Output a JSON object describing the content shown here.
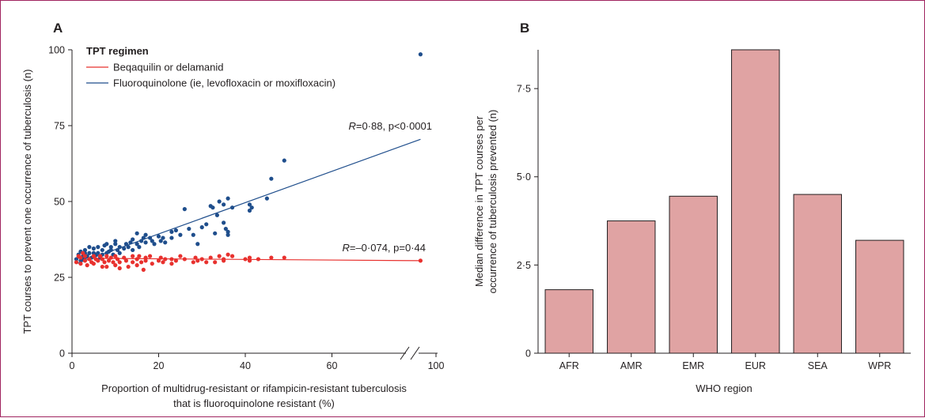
{
  "chart_data": [
    {
      "panel": "A",
      "type": "scatter",
      "xlabel_lines": [
        "Proportion of multidrug-resistant or rifampicin-resistant tuberculosis",
        "that is fluoroquinolone resistant (%)"
      ],
      "ylabel": "TPT courses to prevent one occurrence of tuberculosis (n)",
      "xlim": [
        0,
        100
      ],
      "ylim": [
        0,
        100
      ],
      "x_axis_break": true,
      "x_ticks": [
        "0",
        "20",
        "40",
        "60",
        "100"
      ],
      "y_ticks": [
        "0",
        "25",
        "50",
        "75",
        "100"
      ],
      "legend": {
        "title": "TPT regimen",
        "placement": "top-left",
        "entries": [
          {
            "label": "Beqaquilin or delamanid",
            "color": "#e8312e"
          },
          {
            "label": "Fluoroquinolone (ie, levofloxacin or moxifloxacin)",
            "color": "#1f4e8c"
          }
        ]
      },
      "annotations": [
        {
          "prefix": "R",
          "text": "=0·88, p<0·0001"
        },
        {
          "prefix": "R",
          "text": "=–0·074, p=0·44"
        }
      ],
      "series": [
        {
          "name": "Fluoroquinolone (ie, levofloxacin or moxifloxacin)",
          "color": "#1f4e8c",
          "fit": [
            [
              1,
              29.5
            ],
            [
              89,
              70.5
            ]
          ],
          "points": [
            [
              1,
              31
            ],
            [
              1.5,
              32.5
            ],
            [
              2,
              30.5
            ],
            [
              2,
              33.5
            ],
            [
              2.5,
              32
            ],
            [
              2.5,
              31
            ],
            [
              3,
              33
            ],
            [
              3,
              31.5
            ],
            [
              3,
              34
            ],
            [
              3.5,
              32
            ],
            [
              4,
              33
            ],
            [
              4,
              35
            ],
            [
              4.5,
              31.5
            ],
            [
              5,
              33
            ],
            [
              5,
              34.5
            ],
            [
              5.5,
              32.5
            ],
            [
              6,
              33
            ],
            [
              6,
              35
            ],
            [
              6.5,
              31.5
            ],
            [
              7,
              34
            ],
            [
              7,
              32.5
            ],
            [
              7.5,
              35.5
            ],
            [
              8,
              33
            ],
            [
              8,
              36
            ],
            [
              8.5,
              33.5
            ],
            [
              9,
              35
            ],
            [
              9,
              34
            ],
            [
              9.5,
              32.5
            ],
            [
              10,
              36
            ],
            [
              10,
              37
            ],
            [
              10.5,
              34
            ],
            [
              11,
              35
            ],
            [
              11,
              33
            ],
            [
              12,
              34.5
            ],
            [
              12.5,
              36
            ],
            [
              13,
              35
            ],
            [
              13.5,
              36.5
            ],
            [
              14,
              37.5
            ],
            [
              14,
              34
            ],
            [
              15,
              36
            ],
            [
              15,
              39.5
            ],
            [
              15.5,
              35
            ],
            [
              16,
              37
            ],
            [
              16.5,
              38
            ],
            [
              17,
              36.5
            ],
            [
              17,
              39
            ],
            [
              18,
              38
            ],
            [
              18.5,
              37
            ],
            [
              19,
              36
            ],
            [
              20,
              38.5
            ],
            [
              20.5,
              37
            ],
            [
              21,
              38
            ],
            [
              21.5,
              36.5
            ],
            [
              23,
              38
            ],
            [
              23,
              40
            ],
            [
              24,
              40.5
            ],
            [
              25,
              39
            ],
            [
              26,
              47.5
            ],
            [
              27,
              41
            ],
            [
              28,
              39
            ],
            [
              29,
              36
            ],
            [
              30,
              41.5
            ],
            [
              31,
              42.5
            ],
            [
              32,
              48.5
            ],
            [
              32.5,
              48
            ],
            [
              33,
              39.5
            ],
            [
              33.5,
              45.5
            ],
            [
              34,
              50
            ],
            [
              35,
              49
            ],
            [
              35,
              43
            ],
            [
              35.5,
              41
            ],
            [
              36,
              40
            ],
            [
              36,
              39
            ],
            [
              36,
              51
            ],
            [
              37,
              48
            ],
            [
              41,
              49
            ],
            [
              41,
              47
            ],
            [
              41.5,
              48
            ],
            [
              45,
              51
            ],
            [
              46,
              57.5
            ],
            [
              49,
              63.5
            ],
            [
              89,
              98.5
            ]
          ]
        },
        {
          "name": "Beqaquilin or delamanid",
          "color": "#e8312e",
          "fit": [
            [
              1,
              31.3
            ],
            [
              89,
              30.5
            ]
          ],
          "points": [
            [
              1,
              30
            ],
            [
              1.5,
              32
            ],
            [
              2,
              29.5
            ],
            [
              2,
              31.5
            ],
            [
              2.5,
              33
            ],
            [
              3,
              30.5
            ],
            [
              3,
              32
            ],
            [
              3.5,
              29
            ],
            [
              4,
              31
            ],
            [
              4.5,
              30
            ],
            [
              5,
              32
            ],
            [
              5,
              29.5
            ],
            [
              5.5,
              31
            ],
            [
              6,
              30.5
            ],
            [
              6.5,
              32
            ],
            [
              7,
              28.5
            ],
            [
              7,
              31
            ],
            [
              7.5,
              30
            ],
            [
              8,
              32
            ],
            [
              8,
              28.5
            ],
            [
              8.5,
              30.5
            ],
            [
              9,
              31.5
            ],
            [
              9.5,
              30
            ],
            [
              10,
              29
            ],
            [
              10,
              32
            ],
            [
              10.5,
              31
            ],
            [
              11,
              30
            ],
            [
              11,
              28
            ],
            [
              12,
              31.5
            ],
            [
              12.5,
              30.5
            ],
            [
              13,
              28.5
            ],
            [
              14,
              30
            ],
            [
              14,
              32
            ],
            [
              15,
              31
            ],
            [
              15,
              29
            ],
            [
              15.5,
              32
            ],
            [
              16,
              30
            ],
            [
              16.5,
              27.5
            ],
            [
              17,
              31.5
            ],
            [
              17,
              30.5
            ],
            [
              18,
              32
            ],
            [
              18.5,
              29.5
            ],
            [
              20,
              30.5
            ],
            [
              20.5,
              31.5
            ],
            [
              21,
              30
            ],
            [
              21.5,
              31
            ],
            [
              23,
              31
            ],
            [
              23,
              29.5
            ],
            [
              24,
              30.5
            ],
            [
              25,
              32
            ],
            [
              26,
              31
            ],
            [
              28,
              30
            ],
            [
              28.5,
              31.5
            ],
            [
              29,
              30.5
            ],
            [
              30,
              31
            ],
            [
              31,
              30
            ],
            [
              32,
              31.5
            ],
            [
              33,
              30
            ],
            [
              34,
              32
            ],
            [
              35,
              31
            ],
            [
              35,
              30.5
            ],
            [
              36,
              32.5
            ],
            [
              37,
              32
            ],
            [
              40,
              31
            ],
            [
              41,
              30.5
            ],
            [
              41,
              31.5
            ],
            [
              43,
              31
            ],
            [
              46,
              31.5
            ],
            [
              49,
              31.5
            ],
            [
              89,
              30.5
            ]
          ]
        }
      ]
    },
    {
      "panel": "B",
      "type": "bar",
      "categories": [
        "AFR",
        "AMR",
        "EMR",
        "EUR",
        "SEA",
        "WPR"
      ],
      "values": [
        1.8,
        3.75,
        4.45,
        8.6,
        4.5,
        3.2
      ],
      "bar_color": "#e0a3a3",
      "ylim": [
        0,
        8.6
      ],
      "y_ticks": [
        "0",
        "2·5",
        "5·0",
        "7·5"
      ],
      "xlabel": "WHO region",
      "ylabel_lines": [
        "Median difference in TPT courses per",
        "occurrence of tuberculosis prevented (n)"
      ]
    }
  ]
}
